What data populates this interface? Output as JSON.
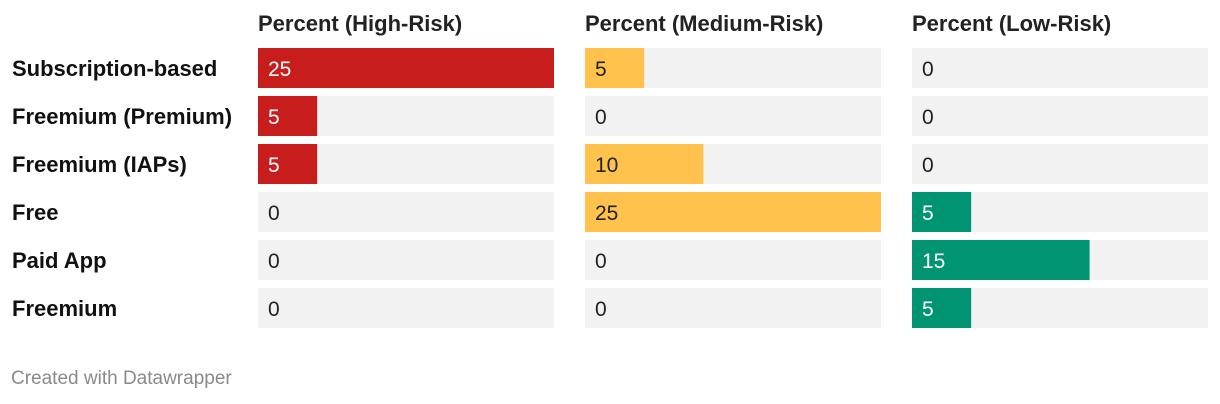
{
  "chart_data": {
    "type": "bar",
    "categories": [
      "Subscription-based",
      "Freemium (Premium)",
      "Freemium (IAPs)",
      "Free",
      "Paid App",
      "Freemium"
    ],
    "series": [
      {
        "name": "Percent (High-Risk)",
        "values": [
          25,
          5,
          5,
          0,
          0,
          0
        ],
        "color": "#c71e1d"
      },
      {
        "name": "Percent (Medium-Risk)",
        "values": [
          5,
          0,
          10,
          25,
          0,
          0
        ],
        "color": "#ffc34d"
      },
      {
        "name": "Percent (Low-Risk)",
        "values": [
          0,
          0,
          0,
          5,
          15,
          5
        ],
        "color": "#009473"
      }
    ],
    "xlim": [
      0,
      25
    ],
    "track_color": "#f2f2f2",
    "grid": false
  },
  "footer": {
    "credit": "Created with Datawrapper"
  }
}
